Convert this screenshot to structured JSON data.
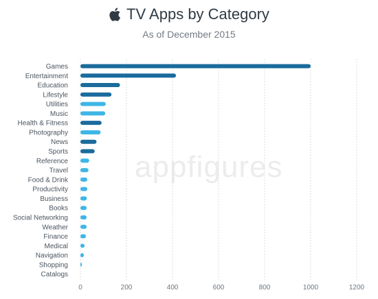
{
  "header": {
    "logo_icon": "apple-logo-icon",
    "title": "TV Apps by Category",
    "subtitle": "As of December 2015"
  },
  "watermark": {
    "part1": "app",
    "part2": "figures"
  },
  "colors": {
    "dark_bar": "#1b6b9c",
    "light_bar": "#3fb6e6",
    "grid": "#d9dde1"
  },
  "chart_data": {
    "type": "bar",
    "orientation": "horizontal",
    "title": "TV Apps by Category",
    "subtitle": "As of December 2015",
    "xlim": [
      0,
      1200
    ],
    "xticks": [
      0,
      200,
      400,
      600,
      800,
      1000,
      1200
    ],
    "grid": true,
    "categories": [
      "Games",
      "Entertainment",
      "Education",
      "Lifestyle",
      "Utilities",
      "Music",
      "Health & Fitness",
      "Photography",
      "News",
      "Sports",
      "Reference",
      "Travel",
      "Food & Drink",
      "Productivity",
      "Business",
      "Books",
      "Social Networking",
      "Weather",
      "Finance",
      "Medical",
      "Navigation",
      "Shopping",
      "Catalogs"
    ],
    "values": [
      1000,
      415,
      172,
      135,
      110,
      108,
      92,
      88,
      70,
      62,
      38,
      35,
      30,
      30,
      28,
      27,
      27,
      27,
      24,
      18,
      15,
      5,
      0
    ],
    "bar_colors": [
      "#1b6b9c",
      "#1b6b9c",
      "#1b6b9c",
      "#1b6b9c",
      "#3fb6e6",
      "#3fb6e6",
      "#1b6b9c",
      "#3fb6e6",
      "#1b6b9c",
      "#1b6b9c",
      "#3fb6e6",
      "#3fb6e6",
      "#3fb6e6",
      "#3fb6e6",
      "#3fb6e6",
      "#3fb6e6",
      "#3fb6e6",
      "#3fb6e6",
      "#3fb6e6",
      "#3fb6e6",
      "#3fb6e6",
      "#3fb6e6",
      "#3fb6e6"
    ]
  }
}
